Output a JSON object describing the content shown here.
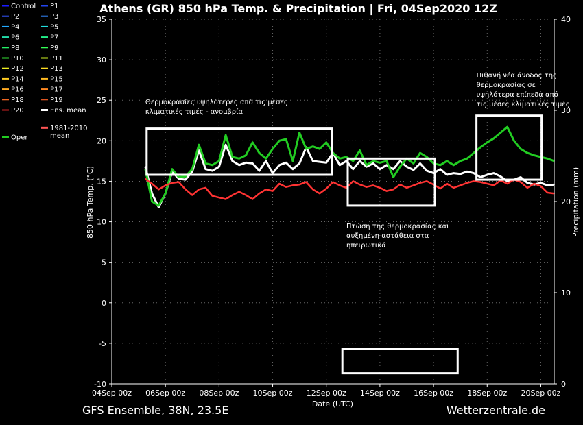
{
  "colors": {
    "background": "#000000",
    "axis": "#ffffff",
    "grid": "#666666",
    "box": "#ffffff",
    "oper": "#22cc22",
    "mean": "#ffffff",
    "climate": "#ff3333"
  },
  "footer": {
    "left": "GFS Ensemble, 38N, 23.5E",
    "right": "Wetterzentrale.de"
  },
  "chart_data": {
    "type": "line",
    "title": "Athens  (GR)  850 hPa Temp. & Precipitation | Fri, 04Sep2020 12Z",
    "xlabel": "Date (UTC)",
    "ylabel": "850 hPa Temp. (°C)",
    "y2label": "Precipitation (mm)",
    "xlim": [
      0,
      16.5
    ],
    "ylim": [
      -10,
      35
    ],
    "y2lim": [
      0,
      40
    ],
    "yticks": [
      -10,
      -5,
      0,
      5,
      10,
      15,
      20,
      25,
      30,
      35
    ],
    "y2ticks": [
      0,
      10,
      20,
      30,
      40
    ],
    "xticks": [
      {
        "pos": 0,
        "label": "04Sep 00z"
      },
      {
        "pos": 2,
        "label": "06Sep 00z"
      },
      {
        "pos": 4,
        "label": "08Sep 00z"
      },
      {
        "pos": 6,
        "label": "10Sep 00z"
      },
      {
        "pos": 8,
        "label": "12Sep 00z"
      },
      {
        "pos": 10,
        "label": "14Sep 00z"
      },
      {
        "pos": 12,
        "label": "16Sep 00z"
      },
      {
        "pos": 14,
        "label": "18Sep 00z"
      },
      {
        "pos": 16,
        "label": "20Sep 00z"
      }
    ],
    "grid": true,
    "legend_position": "left-outside",
    "legend": [
      {
        "name": "Control",
        "color": "#1a1aff"
      },
      {
        "name": "P1",
        "color": "#2244ee"
      },
      {
        "name": "P2",
        "color": "#3355ff"
      },
      {
        "name": "P3",
        "color": "#3388ff"
      },
      {
        "name": "P4",
        "color": "#22aaff"
      },
      {
        "name": "P5",
        "color": "#22dddd"
      },
      {
        "name": "P6",
        "color": "#22ddaa"
      },
      {
        "name": "P7",
        "color": "#22ee88"
      },
      {
        "name": "P8",
        "color": "#22ee66"
      },
      {
        "name": "P9",
        "color": "#33ff55"
      },
      {
        "name": "P10",
        "color": "#33dd33"
      },
      {
        "name": "P11",
        "color": "#ccee22"
      },
      {
        "name": "P12",
        "color": "#eeee22"
      },
      {
        "name": "P13",
        "color": "#ffdd22"
      },
      {
        "name": "P14",
        "color": "#ffcc22"
      },
      {
        "name": "P15",
        "color": "#ffbb22"
      },
      {
        "name": "P16",
        "color": "#ffaa22"
      },
      {
        "name": "P17",
        "color": "#ff8822"
      },
      {
        "name": "P18",
        "color": "#ee6622"
      },
      {
        "name": "P19",
        "color": "#dd5522"
      },
      {
        "name": "P20",
        "color": "#cc2222"
      },
      {
        "name": "Ens. mean",
        "color": "#ffffff"
      },
      {
        "name": "1981-2010 mean",
        "color": "#ff5555"
      },
      {
        "name": "Oper",
        "color": "#22cc22"
      }
    ],
    "series": [
      {
        "name": "Ens. mean",
        "role": "mean",
        "x": [
          1.25,
          1.5,
          1.75,
          2,
          2.25,
          2.5,
          2.75,
          3,
          3.25,
          3.5,
          3.75,
          4,
          4.25,
          4.5,
          4.75,
          5,
          5.25,
          5.5,
          5.75,
          6,
          6.25,
          6.5,
          6.75,
          7,
          7.25,
          7.5,
          7.75,
          8,
          8.25,
          8.5,
          8.75,
          9,
          9.25,
          9.5,
          9.75,
          10,
          10.25,
          10.5,
          10.75,
          11,
          11.25,
          11.5,
          11.75,
          12,
          12.25,
          12.5,
          12.75,
          13,
          13.25,
          13.5,
          13.75,
          14,
          14.25,
          14.5,
          14.75,
          15,
          15.25,
          15.5,
          15.75,
          16,
          16.25,
          16.5
        ],
        "y": [
          16.8,
          13.5,
          11.8,
          13.5,
          16.2,
          15.3,
          15.2,
          16.2,
          18.8,
          16.5,
          16.3,
          16.8,
          19.5,
          17.5,
          17.0,
          17.3,
          17.2,
          16.3,
          17.5,
          16.0,
          17.0,
          17.3,
          16.5,
          17.2,
          19.2,
          17.5,
          17.4,
          17.3,
          18.5,
          17.0,
          17.5,
          16.5,
          17.5,
          16.8,
          17.2,
          16.5,
          17.0,
          16.5,
          17.5,
          16.8,
          16.4,
          17.2,
          16.3,
          16.0,
          16.5,
          15.8,
          16.0,
          15.9,
          16.2,
          16.0,
          15.5,
          15.8,
          16.0,
          15.6,
          15.0,
          15.2,
          15.5,
          14.8,
          14.6,
          14.8,
          14.5,
          14.6
        ]
      },
      {
        "name": "Oper",
        "role": "oper",
        "x": [
          1.25,
          1.5,
          1.75,
          2,
          2.25,
          2.5,
          2.75,
          3,
          3.25,
          3.5,
          3.75,
          4,
          4.25,
          4.5,
          4.75,
          5,
          5.25,
          5.5,
          5.75,
          6,
          6.25,
          6.5,
          6.75,
          7,
          7.25,
          7.5,
          7.75,
          8,
          8.25,
          8.5,
          8.75,
          9,
          9.25,
          9.5,
          9.75,
          10,
          10.25,
          10.5,
          10.75,
          11,
          11.25,
          11.5,
          11.75,
          12,
          12.25,
          12.5,
          12.75,
          13,
          13.25,
          13.5,
          13.75,
          14,
          14.25,
          14.5,
          14.75,
          15,
          15.25,
          15.5,
          15.75,
          16,
          16.25,
          16.5
        ],
        "y": [
          16.5,
          12.5,
          12.0,
          13.5,
          16.5,
          15.5,
          15.6,
          16.5,
          19.5,
          17.2,
          17.0,
          17.5,
          20.7,
          18.0,
          17.8,
          18.2,
          19.8,
          18.5,
          17.8,
          19.0,
          20.0,
          20.2,
          17.5,
          21.0,
          19.0,
          19.3,
          19.0,
          19.8,
          18.5,
          17.8,
          18.0,
          17.5,
          18.8,
          17.0,
          17.5,
          17.3,
          17.5,
          15.5,
          16.8,
          17.8,
          17.2,
          18.5,
          18.0,
          17.2,
          17.0,
          17.5,
          17.0,
          17.5,
          17.8,
          18.5,
          19.2,
          19.8,
          20.3,
          21.0,
          21.7,
          20.0,
          19.0,
          18.5,
          18.2,
          18.0,
          17.8,
          17.5
        ]
      },
      {
        "name": "1981-2010 mean",
        "role": "climate",
        "x": [
          1.25,
          1.5,
          1.75,
          2,
          2.25,
          2.5,
          2.75,
          3,
          3.25,
          3.5,
          3.75,
          4,
          4.25,
          4.5,
          4.75,
          5,
          5.25,
          5.5,
          5.75,
          6,
          6.25,
          6.5,
          6.75,
          7,
          7.25,
          7.5,
          7.75,
          8,
          8.25,
          8.5,
          8.75,
          9,
          9.25,
          9.5,
          9.75,
          10,
          10.25,
          10.5,
          10.75,
          11,
          11.25,
          11.5,
          11.75,
          12,
          12.25,
          12.5,
          12.75,
          13,
          13.25,
          13.5,
          13.75,
          14,
          14.25,
          14.5,
          14.75,
          15,
          15.25,
          15.5,
          15.75,
          16,
          16.25,
          16.5
        ],
        "y": [
          15.3,
          14.7,
          14.0,
          14.5,
          14.8,
          14.9,
          14.0,
          13.3,
          14.0,
          14.2,
          13.2,
          13.0,
          12.8,
          13.3,
          13.7,
          13.3,
          12.8,
          13.5,
          14.0,
          13.8,
          14.7,
          14.3,
          14.5,
          14.6,
          14.9,
          14.0,
          13.5,
          14.1,
          14.9,
          14.5,
          14.2,
          15.0,
          14.6,
          14.3,
          14.5,
          14.2,
          13.8,
          14.0,
          14.6,
          14.2,
          14.5,
          14.8,
          15.0,
          14.6,
          14.1,
          14.7,
          14.2,
          14.5,
          14.8,
          15.0,
          14.9,
          14.7,
          14.5,
          15.1,
          14.7,
          15.2,
          14.9,
          14.2,
          14.7,
          14.4,
          13.6,
          13.5
        ]
      }
    ],
    "annotations": [
      {
        "text": "Θερμοκρασίες υψηλότερες από τις μέσες\nκλιματικές τιμές - ανομβρία",
        "x": 1.25,
        "y": 24.5
      },
      {
        "text": "Πτώση της θερμοκρασίας και\nαυξημένη αστάθεια στα\nηπειρωτικά",
        "x": 8.75,
        "y": 9.2
      },
      {
        "text": "Πιθανή νέα άνοδος της\nθερμοκρασίας σε\nυψηλότερα επίπεδα από\nτις μέσες κλιματικές τιμές",
        "x": 13.6,
        "y": 27.8
      }
    ],
    "boxes": [
      {
        "x0": 1.3,
        "x1": 8.2,
        "y0": 15.8,
        "y1": 21.5
      },
      {
        "x0": 8.8,
        "x1": 12.05,
        "y0": 12.0,
        "y1": 17.8
      },
      {
        "x0": 13.6,
        "x1": 16.03,
        "y0": 15.2,
        "y1": 23.1
      },
      {
        "x0": 8.6,
        "x1": 12.9,
        "y0": -8.7,
        "y1": -5.7
      }
    ]
  }
}
